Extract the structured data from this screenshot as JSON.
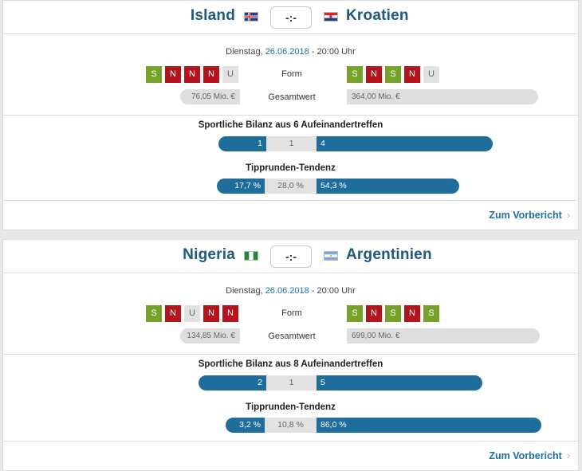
{
  "matches": [
    {
      "home": {
        "name": "Island",
        "flag": "iceland-flag",
        "form": [
          "S",
          "N",
          "N",
          "N",
          "U"
        ],
        "market_value": "76,05 Mio. €"
      },
      "away": {
        "name": "Kroatien",
        "flag": "croatia-flag",
        "form": [
          "S",
          "N",
          "S",
          "N",
          "U"
        ],
        "market_value": "364,00 Mio. €"
      },
      "score": "-:-",
      "date_prefix": "Dienstag,",
      "date": "26.06.2018",
      "time": "- 20:00 Uhr",
      "form_label": "Form",
      "value_label": "Gesamtwert",
      "h2h_title": "Sportliche Bilanz aus 6 Aufeinandertreffen",
      "h2h": {
        "home": "1",
        "draw": "1",
        "away": "4"
      },
      "tip_title": "Tipprunden-Tendenz",
      "tip": {
        "home": "17,7 %",
        "draw": "28,0 %",
        "away": "54,3 %"
      },
      "more_label": "Zum Vorbericht"
    },
    {
      "home": {
        "name": "Nigeria",
        "flag": "nigeria-flag",
        "form": [
          "S",
          "N",
          "U",
          "N",
          "N"
        ],
        "market_value": "134,85 Mio. €"
      },
      "away": {
        "name": "Argentinien",
        "flag": "argentina-flag",
        "form": [
          "S",
          "N",
          "S",
          "N",
          "S"
        ],
        "market_value": "699,00 Mio. €"
      },
      "score": "-:-",
      "date_prefix": "Dienstag,",
      "date": "26.06.2018",
      "time": "- 20:00 Uhr",
      "form_label": "Form",
      "value_label": "Gesamtwert",
      "h2h_title": "Sportliche Bilanz aus 8 Aufeinandertreffen",
      "h2h": {
        "home": "2",
        "draw": "1",
        "away": "5"
      },
      "tip_title": "Tipprunden-Tendenz",
      "tip": {
        "home": "3,2 %",
        "draw": "10,8 %",
        "away": "86,0 %"
      },
      "more_label": "Zum Vorbericht"
    }
  ],
  "colors": {
    "accent": "#1f6d9b",
    "win": "#77a22a",
    "loss": "#b5141e",
    "draw": "#e2e2e2",
    "team_text": "#1d5a7c"
  },
  "icons": {
    "chevron": "chevron-right-icon"
  }
}
